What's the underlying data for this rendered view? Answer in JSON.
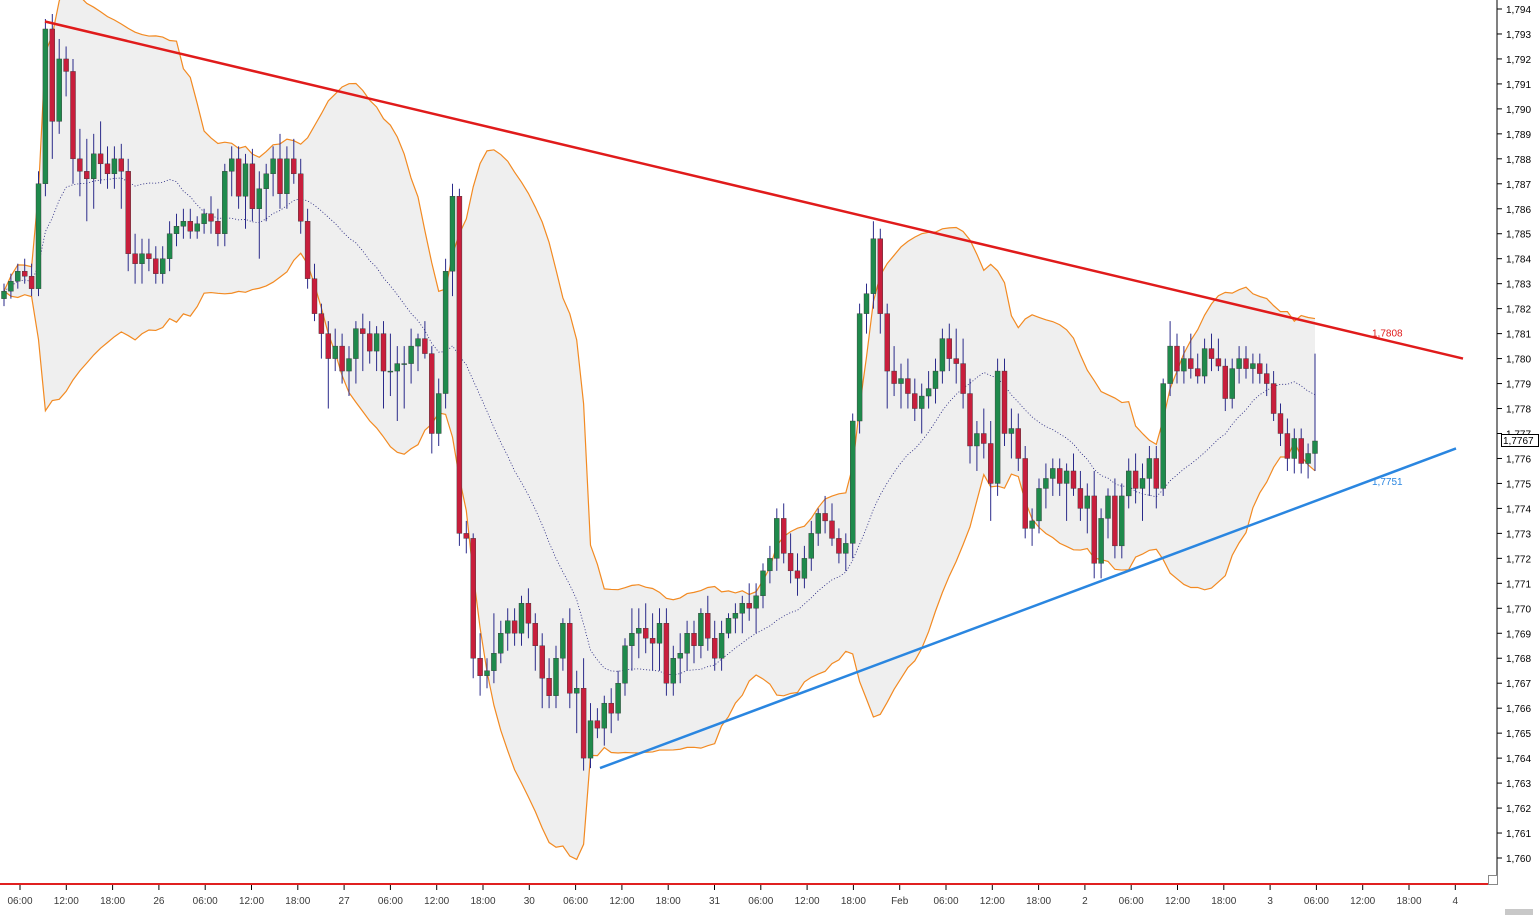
{
  "colors": {
    "background": "#ffffff",
    "band_line": "#f28a22",
    "band_fill": "#efefef",
    "bull_candle": "#1f8a4c",
    "bear_candle": "#c81e3c",
    "wick": "#2a2a8a",
    "resistance": "#e01b1b",
    "support": "#2a86e0",
    "axis_line": "#e02020",
    "ma_line": "#1a1a7a",
    "axis_label": "#3a3a3a"
  },
  "chart_data": {
    "type": "candlestick",
    "title": "",
    "xlabel": "",
    "ylabel": "",
    "ylim": [
      1.7595,
      1.7945
    ],
    "grid": false,
    "y_ticks": [
      "1,794",
      "1,793",
      "1,792",
      "1,791",
      "1,790",
      "1,789",
      "1,788",
      "1,787",
      "1,786",
      "1,785",
      "1,784",
      "1,783",
      "1,782",
      "1,781",
      "1,780",
      "1,779",
      "1,778",
      "1,777",
      "1,776",
      "1,775",
      "1,774",
      "1,773",
      "1,772",
      "1,771",
      "1,770",
      "1,769",
      "1,768",
      "1,767",
      "1,766",
      "1,765",
      "1,764",
      "1,763",
      "1,762",
      "1,761",
      "1,760"
    ],
    "x_ticks": [
      "06:00",
      "12:00",
      "18:00",
      "26",
      "06:00",
      "12:00",
      "18:00",
      "27",
      "06:00",
      "12:00",
      "18:00",
      "30",
      "06:00",
      "12:00",
      "18:00",
      "31",
      "06:00",
      "12:00",
      "18:00",
      "Feb",
      "06:00",
      "12:00",
      "18:00",
      "2",
      "06:00",
      "12:00",
      "18:00",
      "3",
      "06:00",
      "12:00",
      "18:00",
      "4"
    ],
    "current_price": "1,7767",
    "resistance_label": "1,7808",
    "support_label": "1,7751",
    "candles": [
      [
        1.7824,
        1.783,
        1.7821,
        1.7827
      ],
      [
        1.7827,
        1.7834,
        1.7824,
        1.7831
      ],
      [
        1.7831,
        1.7838,
        1.7828,
        1.7835
      ],
      [
        1.7835,
        1.784,
        1.783,
        1.7833
      ],
      [
        1.7833,
        1.7838,
        1.7825,
        1.7828
      ],
      [
        1.7828,
        1.7875,
        1.7825,
        1.787
      ],
      [
        1.787,
        1.7936,
        1.7865,
        1.7932
      ],
      [
        1.7932,
        1.7938,
        1.788,
        1.7895
      ],
      [
        1.7895,
        1.7928,
        1.789,
        1.792
      ],
      [
        1.792,
        1.7925,
        1.7905,
        1.7915
      ],
      [
        1.7915,
        1.792,
        1.787,
        1.788
      ],
      [
        1.788,
        1.7892,
        1.7865,
        1.7875
      ],
      [
        1.7875,
        1.7888,
        1.7855,
        1.7872
      ],
      [
        1.7872,
        1.789,
        1.786,
        1.7882
      ],
      [
        1.7882,
        1.7895,
        1.787,
        1.7878
      ],
      [
        1.7878,
        1.7885,
        1.7868,
        1.7874
      ],
      [
        1.7874,
        1.7885,
        1.7868,
        1.788
      ],
      [
        1.788,
        1.7886,
        1.786,
        1.7875
      ],
      [
        1.7875,
        1.788,
        1.7835,
        1.7842
      ],
      [
        1.7842,
        1.785,
        1.783,
        1.7838
      ],
      [
        1.7838,
        1.7848,
        1.783,
        1.7842
      ],
      [
        1.7842,
        1.7848,
        1.7835,
        1.784
      ],
      [
        1.784,
        1.7845,
        1.783,
        1.7834
      ],
      [
        1.7834,
        1.7845,
        1.783,
        1.784
      ],
      [
        1.784,
        1.7855,
        1.7835,
        1.785
      ],
      [
        1.785,
        1.7858,
        1.7845,
        1.7853
      ],
      [
        1.7853,
        1.786,
        1.7848,
        1.7855
      ],
      [
        1.7855,
        1.786,
        1.7848,
        1.7851
      ],
      [
        1.7851,
        1.7857,
        1.7848,
        1.7854
      ],
      [
        1.7854,
        1.786,
        1.785,
        1.7858
      ],
      [
        1.7858,
        1.7865,
        1.785,
        1.7855
      ],
      [
        1.7855,
        1.786,
        1.7845,
        1.785
      ],
      [
        1.785,
        1.7878,
        1.7845,
        1.7875
      ],
      [
        1.7875,
        1.7885,
        1.7865,
        1.788
      ],
      [
        1.788,
        1.7885,
        1.786,
        1.7865
      ],
      [
        1.7865,
        1.7882,
        1.7852,
        1.7878
      ],
      [
        1.7878,
        1.7884,
        1.7855,
        1.786
      ],
      [
        1.786,
        1.7875,
        1.784,
        1.7868
      ],
      [
        1.7868,
        1.7878,
        1.7855,
        1.7874
      ],
      [
        1.7874,
        1.7885,
        1.7865,
        1.788
      ],
      [
        1.788,
        1.789,
        1.786,
        1.7866
      ],
      [
        1.7866,
        1.7885,
        1.786,
        1.788
      ],
      [
        1.788,
        1.7888,
        1.787,
        1.7874
      ],
      [
        1.7874,
        1.788,
        1.785,
        1.7855
      ],
      [
        1.7855,
        1.786,
        1.7828,
        1.7832
      ],
      [
        1.7832,
        1.7838,
        1.7815,
        1.7818
      ],
      [
        1.7818,
        1.7822,
        1.78,
        1.781
      ],
      [
        1.781,
        1.7815,
        1.778,
        1.78
      ],
      [
        1.78,
        1.7812,
        1.7795,
        1.7805
      ],
      [
        1.7805,
        1.781,
        1.779,
        1.7795
      ],
      [
        1.7795,
        1.7805,
        1.7785,
        1.78
      ],
      [
        1.78,
        1.7815,
        1.779,
        1.7812
      ],
      [
        1.7812,
        1.7818,
        1.7795,
        1.781
      ],
      [
        1.781,
        1.7815,
        1.7798,
        1.7803
      ],
      [
        1.7803,
        1.7813,
        1.7795,
        1.781
      ],
      [
        1.781,
        1.7815,
        1.778,
        1.7795
      ],
      [
        1.7795,
        1.781,
        1.7785,
        1.7795
      ],
      [
        1.7795,
        1.7805,
        1.7775,
        1.7798
      ],
      [
        1.7798,
        1.7805,
        1.778,
        1.7798
      ],
      [
        1.7798,
        1.7812,
        1.779,
        1.7805
      ],
      [
        1.7805,
        1.781,
        1.7795,
        1.7808
      ],
      [
        1.7808,
        1.7815,
        1.78,
        1.7802
      ],
      [
        1.7802,
        1.7805,
        1.7762,
        1.777
      ],
      [
        1.777,
        1.7792,
        1.7765,
        1.7786
      ],
      [
        1.7786,
        1.784,
        1.778,
        1.7835
      ],
      [
        1.7835,
        1.787,
        1.7825,
        1.7865
      ],
      [
        1.7865,
        1.7868,
        1.7725,
        1.773
      ],
      [
        1.773,
        1.7735,
        1.7722,
        1.7728
      ],
      [
        1.7728,
        1.773,
        1.7672,
        1.768
      ],
      [
        1.768,
        1.769,
        1.7665,
        1.7673
      ],
      [
        1.7673,
        1.768,
        1.7668,
        1.7675
      ],
      [
        1.7675,
        1.7698,
        1.767,
        1.7682
      ],
      [
        1.7682,
        1.7695,
        1.7678,
        1.769
      ],
      [
        1.769,
        1.77,
        1.7683,
        1.7695
      ],
      [
        1.7695,
        1.77,
        1.7685,
        1.769
      ],
      [
        1.769,
        1.7705,
        1.7685,
        1.7702
      ],
      [
        1.7702,
        1.7708,
        1.7688,
        1.7694
      ],
      [
        1.7694,
        1.7698,
        1.7675,
        1.7685
      ],
      [
        1.7685,
        1.769,
        1.766,
        1.7672
      ],
      [
        1.7672,
        1.768,
        1.766,
        1.7665
      ],
      [
        1.7665,
        1.7685,
        1.766,
        1.768
      ],
      [
        1.768,
        1.7696,
        1.7675,
        1.7694
      ],
      [
        1.7694,
        1.77,
        1.766,
        1.7666
      ],
      [
        1.7666,
        1.7675,
        1.765,
        1.7668
      ],
      [
        1.7668,
        1.768,
        1.7635,
        1.764
      ],
      [
        1.764,
        1.7662,
        1.7636,
        1.7655
      ],
      [
        1.7655,
        1.766,
        1.7648,
        1.7652
      ],
      [
        1.7652,
        1.7665,
        1.7645,
        1.7662
      ],
      [
        1.7662,
        1.7668,
        1.765,
        1.7658
      ],
      [
        1.7658,
        1.7675,
        1.7655,
        1.767
      ],
      [
        1.767,
        1.7688,
        1.7665,
        1.7685
      ],
      [
        1.7685,
        1.77,
        1.7675,
        1.769
      ],
      [
        1.769,
        1.77,
        1.768,
        1.7692
      ],
      [
        1.7692,
        1.7702,
        1.7682,
        1.7688
      ],
      [
        1.7688,
        1.7698,
        1.7675,
        1.7686
      ],
      [
        1.7686,
        1.77,
        1.7675,
        1.7694
      ],
      [
        1.7694,
        1.77,
        1.7665,
        1.767
      ],
      [
        1.767,
        1.7685,
        1.7665,
        1.768
      ],
      [
        1.768,
        1.769,
        1.767,
        1.7682
      ],
      [
        1.7682,
        1.7695,
        1.7675,
        1.769
      ],
      [
        1.769,
        1.7695,
        1.7678,
        1.7685
      ],
      [
        1.7685,
        1.77,
        1.768,
        1.7698
      ],
      [
        1.7698,
        1.7705,
        1.7683,
        1.7688
      ],
      [
        1.7688,
        1.7695,
        1.7675,
        1.768
      ],
      [
        1.768,
        1.7695,
        1.7675,
        1.769
      ],
      [
        1.769,
        1.7698,
        1.7688,
        1.7696
      ],
      [
        1.7696,
        1.7702,
        1.769,
        1.7698
      ],
      [
        1.7698,
        1.7705,
        1.769,
        1.7702
      ],
      [
        1.7702,
        1.771,
        1.7695,
        1.77
      ],
      [
        1.77,
        1.771,
        1.769,
        1.7705
      ],
      [
        1.7705,
        1.7718,
        1.77,
        1.7715
      ],
      [
        1.7715,
        1.7725,
        1.771,
        1.772
      ],
      [
        1.772,
        1.774,
        1.7715,
        1.7736
      ],
      [
        1.7736,
        1.7742,
        1.7718,
        1.7722
      ],
      [
        1.7722,
        1.773,
        1.771,
        1.7715
      ],
      [
        1.7715,
        1.7722,
        1.7705,
        1.7712
      ],
      [
        1.7712,
        1.7725,
        1.7708,
        1.772
      ],
      [
        1.772,
        1.7735,
        1.7715,
        1.773
      ],
      [
        1.773,
        1.774,
        1.7725,
        1.7738
      ],
      [
        1.7738,
        1.7745,
        1.773,
        1.7735
      ],
      [
        1.7735,
        1.7742,
        1.7725,
        1.7728
      ],
      [
        1.7728,
        1.7732,
        1.7718,
        1.7722
      ],
      [
        1.7722,
        1.773,
        1.7715,
        1.7726
      ],
      [
        1.7726,
        1.7778,
        1.772,
        1.7775
      ],
      [
        1.7775,
        1.7822,
        1.777,
        1.7818
      ],
      [
        1.7818,
        1.783,
        1.781,
        1.7826
      ],
      [
        1.7826,
        1.7855,
        1.782,
        1.7848
      ],
      [
        1.7848,
        1.7852,
        1.781,
        1.7818
      ],
      [
        1.7818,
        1.7822,
        1.778,
        1.7795
      ],
      [
        1.7795,
        1.7805,
        1.7785,
        1.779
      ],
      [
        1.779,
        1.7798,
        1.778,
        1.7792
      ],
      [
        1.7792,
        1.78,
        1.778,
        1.7786
      ],
      [
        1.7786,
        1.7792,
        1.7775,
        1.778
      ],
      [
        1.778,
        1.779,
        1.777,
        1.7785
      ],
      [
        1.7785,
        1.7795,
        1.778,
        1.7788
      ],
      [
        1.7788,
        1.78,
        1.7782,
        1.7795
      ],
      [
        1.7795,
        1.7812,
        1.779,
        1.7808
      ],
      [
        1.7808,
        1.7814,
        1.7795,
        1.78
      ],
      [
        1.78,
        1.7812,
        1.779,
        1.7798
      ],
      [
        1.7798,
        1.7808,
        1.778,
        1.7786
      ],
      [
        1.7786,
        1.7792,
        1.7758,
        1.7765
      ],
      [
        1.7765,
        1.7775,
        1.7755,
        1.777
      ],
      [
        1.777,
        1.778,
        1.776,
        1.7766
      ],
      [
        1.7766,
        1.7775,
        1.7735,
        1.775
      ],
      [
        1.775,
        1.78,
        1.7745,
        1.7795
      ],
      [
        1.7795,
        1.78,
        1.7765,
        1.777
      ],
      [
        1.777,
        1.778,
        1.776,
        1.7772
      ],
      [
        1.7772,
        1.7778,
        1.7755,
        1.776
      ],
      [
        1.776,
        1.7765,
        1.7728,
        1.7732
      ],
      [
        1.7732,
        1.774,
        1.7725,
        1.7735
      ],
      [
        1.7735,
        1.7752,
        1.773,
        1.7748
      ],
      [
        1.7748,
        1.7758,
        1.774,
        1.7752
      ],
      [
        1.7752,
        1.776,
        1.7745,
        1.7756
      ],
      [
        1.7756,
        1.776,
        1.7745,
        1.775
      ],
      [
        1.775,
        1.7758,
        1.7735,
        1.7755
      ],
      [
        1.7755,
        1.7762,
        1.7745,
        1.7748
      ],
      [
        1.7748,
        1.7755,
        1.7735,
        1.774
      ],
      [
        1.774,
        1.775,
        1.773,
        1.7745
      ],
      [
        1.7745,
        1.7755,
        1.7712,
        1.7718
      ],
      [
        1.7718,
        1.774,
        1.7712,
        1.7736
      ],
      [
        1.7736,
        1.7748,
        1.7728,
        1.7745
      ],
      [
        1.7745,
        1.7752,
        1.772,
        1.7725
      ],
      [
        1.7725,
        1.775,
        1.772,
        1.7745
      ],
      [
        1.7745,
        1.776,
        1.774,
        1.7755
      ],
      [
        1.7755,
        1.7762,
        1.7742,
        1.7748
      ],
      [
        1.7748,
        1.7758,
        1.7735,
        1.7752
      ],
      [
        1.7752,
        1.7765,
        1.7745,
        1.776
      ],
      [
        1.776,
        1.7765,
        1.774,
        1.7748
      ],
      [
        1.7748,
        1.7792,
        1.7745,
        1.779
      ],
      [
        1.779,
        1.7815,
        1.7785,
        1.7805
      ],
      [
        1.7805,
        1.781,
        1.779,
        1.7795
      ],
      [
        1.7795,
        1.7805,
        1.779,
        1.78
      ],
      [
        1.78,
        1.781,
        1.7792,
        1.7796
      ],
      [
        1.7796,
        1.7802,
        1.779,
        1.7793
      ],
      [
        1.7793,
        1.7808,
        1.779,
        1.7804
      ],
      [
        1.7804,
        1.781,
        1.7795,
        1.78
      ],
      [
        1.78,
        1.7808,
        1.7795,
        1.7797
      ],
      [
        1.7797,
        1.78,
        1.7779,
        1.7784
      ],
      [
        1.7784,
        1.78,
        1.778,
        1.7796
      ],
      [
        1.7796,
        1.7805,
        1.779,
        1.78
      ],
      [
        1.78,
        1.7805,
        1.7792,
        1.7796
      ],
      [
        1.7796,
        1.7802,
        1.779,
        1.7798
      ],
      [
        1.7798,
        1.7802,
        1.779,
        1.7794
      ],
      [
        1.7794,
        1.7798,
        1.7785,
        1.779
      ],
      [
        1.779,
        1.7795,
        1.7775,
        1.7778
      ],
      [
        1.7778,
        1.7782,
        1.7765,
        1.777
      ],
      [
        1.777,
        1.7776,
        1.7755,
        1.776
      ],
      [
        1.776,
        1.7772,
        1.7754,
        1.7768
      ],
      [
        1.7768,
        1.7772,
        1.7754,
        1.7758
      ],
      [
        1.7758,
        1.7766,
        1.7752,
        1.7762
      ],
      [
        1.7762,
        1.7802,
        1.7755,
        1.7767
      ]
    ]
  }
}
